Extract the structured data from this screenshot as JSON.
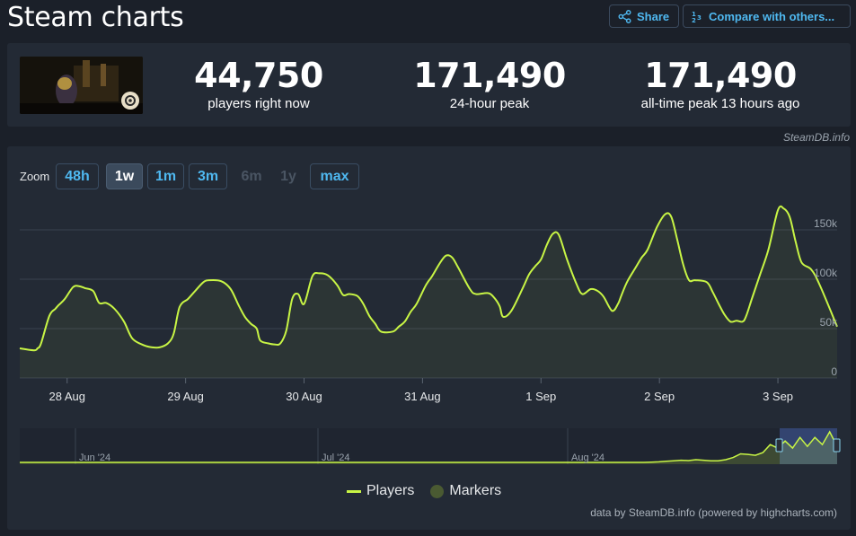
{
  "header": {
    "title": "Steam charts",
    "share_label": "Share",
    "compare_label": "Compare with others..."
  },
  "stats": [
    {
      "value": "44,750",
      "label": "players right now"
    },
    {
      "value": "171,490",
      "label": "24-hour peak"
    },
    {
      "value": "171,490",
      "label": "all-time peak 13 hours ago"
    }
  ],
  "credit_top": "SteamDB.info",
  "zoom": {
    "label": "Zoom",
    "buttons": [
      {
        "label": "48h",
        "state": "normal"
      },
      {
        "label": "1w",
        "state": "active"
      },
      {
        "label": "1m",
        "state": "normal"
      },
      {
        "label": "3m",
        "state": "normal"
      },
      {
        "label": "6m",
        "state": "disabled"
      },
      {
        "label": "1y",
        "state": "disabled"
      },
      {
        "label": "max",
        "state": "normal"
      }
    ]
  },
  "legend": {
    "players": "Players",
    "markers": "Markers"
  },
  "credit_bottom": "data by SteamDB.info (powered by highcharts.com)",
  "colors": {
    "line": "#c8f545",
    "marker": "#4a5a32",
    "accent": "#4fb8f0"
  },
  "chart_data": {
    "type": "line",
    "ylim": [
      0,
      180000
    ],
    "y_ticks": [
      {
        "value": 0,
        "label": "0"
      },
      {
        "value": 50000,
        "label": "50k"
      },
      {
        "value": 100000,
        "label": "100k"
      },
      {
        "value": 150000,
        "label": "150k"
      }
    ],
    "xlim": [
      27.6,
      34.5
    ],
    "x_ticks": [
      {
        "value": 28,
        "label": "28 Aug"
      },
      {
        "value": 29,
        "label": "29 Aug"
      },
      {
        "value": 30,
        "label": "30 Aug"
      },
      {
        "value": 31,
        "label": "31 Aug"
      },
      {
        "value": 32,
        "label": "1 Sep"
      },
      {
        "value": 33,
        "label": "2 Sep"
      },
      {
        "value": 34,
        "label": "3 Sep"
      }
    ],
    "series": [
      {
        "name": "Players",
        "x": [
          27.6,
          27.72,
          27.75,
          27.78,
          27.85,
          27.9,
          27.93,
          27.98,
          28.05,
          28.1,
          28.15,
          28.22,
          28.27,
          28.33,
          28.4,
          28.48,
          28.55,
          28.65,
          28.72,
          28.78,
          28.85,
          28.9,
          28.95,
          29.02,
          29.08,
          29.15,
          29.2,
          29.3,
          29.38,
          29.45,
          29.5,
          29.55,
          29.6,
          29.63,
          29.7,
          29.75,
          29.8,
          29.85,
          29.9,
          29.95,
          30.0,
          30.07,
          30.13,
          30.2,
          30.28,
          30.33,
          30.38,
          30.45,
          30.5,
          30.55,
          30.6,
          30.65,
          30.75,
          30.8,
          30.85,
          30.9,
          30.95,
          31.02,
          31.05,
          31.08,
          31.15,
          31.2,
          31.25,
          31.3,
          31.4,
          31.45,
          31.55,
          31.6,
          31.65,
          31.68,
          31.75,
          31.85,
          31.9,
          31.95,
          32.0,
          32.05,
          32.1,
          32.15,
          32.22,
          32.3,
          32.35,
          32.42,
          32.48,
          32.53,
          32.6,
          32.65,
          32.68,
          32.73,
          32.8,
          32.85,
          32.9,
          32.98,
          33.05,
          33.1,
          33.15,
          33.2,
          33.25,
          33.3,
          33.4,
          33.45,
          33.5,
          33.55,
          33.6,
          33.65,
          33.7,
          33.73,
          33.78,
          33.85,
          33.92,
          34.0,
          34.05,
          34.1,
          34.15,
          34.2,
          34.28,
          34.35,
          34.5
        ],
        "y": [
          30000,
          28000,
          30000,
          35000,
          63000,
          70000,
          74000,
          80000,
          92000,
          93000,
          91000,
          88000,
          76000,
          76000,
          70000,
          57000,
          40000,
          33000,
          31000,
          31000,
          35000,
          45000,
          72000,
          80000,
          88000,
          97000,
          99000,
          98000,
          90000,
          73000,
          62000,
          55000,
          50000,
          38000,
          35000,
          34000,
          35000,
          48000,
          80000,
          85000,
          75000,
          103000,
          106000,
          104000,
          94000,
          84000,
          85000,
          83000,
          75000,
          63000,
          55000,
          47000,
          47000,
          52000,
          57000,
          67000,
          75000,
          92000,
          98000,
          103000,
          117000,
          124000,
          122000,
          112000,
          90000,
          85000,
          86000,
          82000,
          73000,
          62000,
          68000,
          92000,
          105000,
          113000,
          120000,
          135000,
          146000,
          145000,
          120000,
          95000,
          85000,
          90000,
          88000,
          82000,
          68000,
          75000,
          84000,
          98000,
          112000,
          122000,
          130000,
          153000,
          166000,
          163000,
          140000,
          115000,
          99000,
          99000,
          97000,
          87000,
          75000,
          64000,
          57000,
          58000,
          57000,
          62000,
          80000,
          105000,
          130000,
          170000,
          171490,
          163000,
          138000,
          117000,
          110000,
          95000,
          52000
        ]
      }
    ],
    "navigator": {
      "x_labels": [
        "Jun '24",
        "Jul '24",
        "Aug '24"
      ],
      "values": [
        0,
        0,
        0,
        0,
        0,
        0,
        0,
        0,
        0,
        0,
        0,
        0,
        0,
        0,
        0,
        0,
        0,
        0,
        0,
        0,
        0,
        0,
        0,
        0,
        0,
        0,
        0,
        0,
        0,
        0,
        0,
        0,
        0,
        0,
        0,
        0,
        0,
        0,
        0,
        0,
        0,
        0,
        0,
        0,
        0,
        0,
        0,
        0,
        0,
        0,
        0,
        0,
        0,
        0,
        0,
        0,
        0,
        0,
        0,
        0,
        0,
        0,
        0,
        0,
        0,
        0,
        0,
        0,
        0,
        0,
        0,
        0,
        0,
        0,
        0,
        0,
        0,
        0,
        0,
        0,
        0,
        0,
        0,
        0,
        0,
        1500,
        3000,
        6000,
        9000,
        12000,
        10000,
        15000,
        12000,
        9000,
        9000,
        15000,
        27000,
        48000,
        45000,
        40000,
        55000,
        100000,
        80000,
        120000,
        80000,
        140000,
        90000,
        140000,
        100000,
        171490,
        90000
      ]
    }
  }
}
